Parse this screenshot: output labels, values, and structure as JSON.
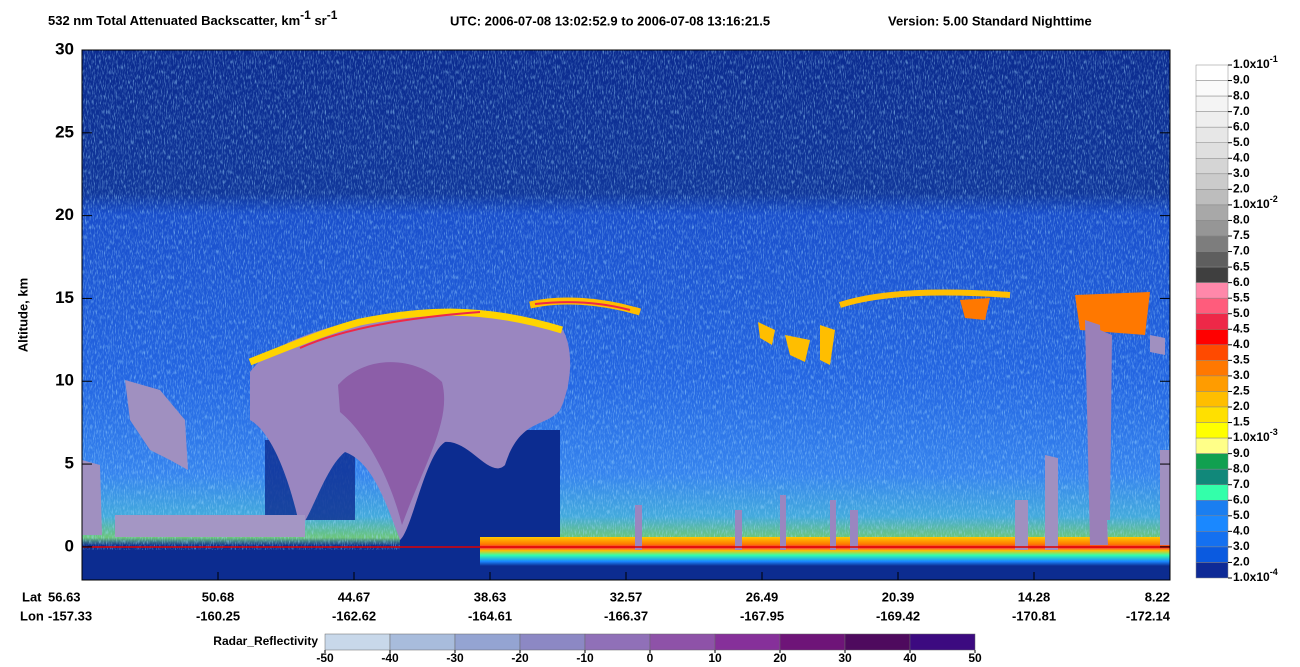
{
  "chart_data": {
    "type": "curtain",
    "title": {
      "text": "532 nm Total Attenuated Backscatter, km",
      "exp1": "-1",
      "unit2": " sr",
      "exp2": "-1"
    },
    "utc": "UTC:  2006-07-08 13:02:52.9  to  2006-07-08 13:16:21.5",
    "version": "Version: 5.00  Standard  Nighttime",
    "ylabel": "Altitude, km",
    "ylim": [
      -2,
      30
    ],
    "yticks": [
      0,
      5,
      10,
      15,
      20,
      25,
      30
    ],
    "lat_label": "Lat",
    "lon_label": "Lon",
    "lat": [
      56.63,
      50.68,
      44.67,
      38.63,
      32.57,
      26.49,
      20.39,
      14.28,
      8.22
    ],
    "lon": [
      -157.33,
      -160.25,
      -162.62,
      -164.61,
      -166.37,
      -167.95,
      -169.42,
      -170.81,
      -172.14
    ],
    "colorbar": {
      "labels": [
        {
          "text": "1.0x10",
          "exp": "-1"
        },
        "9.0",
        "8.0",
        "7.0",
        "6.0",
        "5.0",
        "4.0",
        "3.0",
        "2.0",
        {
          "text": "1.0x10",
          "exp": "-2"
        },
        "8.0",
        "7.5",
        "7.0",
        "6.5",
        "6.0",
        "5.5",
        "5.0",
        "4.5",
        "4.0",
        "3.5",
        "3.0",
        "2.5",
        "2.0",
        "1.5",
        {
          "text": "1.0x10",
          "exp": "-3"
        },
        "9.0",
        "8.0",
        "7.0",
        "6.0",
        "5.0",
        "4.0",
        "3.0",
        "2.0",
        {
          "text": "1.0x10",
          "exp": "-4"
        }
      ],
      "colors": [
        "#ffffff",
        "#fafafa",
        "#f4f4f4",
        "#eeeeee",
        "#e7e7e7",
        "#dfdfdf",
        "#d5d5d5",
        "#cbcbcb",
        "#bdbdbd",
        "#a8a8a8",
        "#969696",
        "#7d7d7d",
        "#5e5e5e",
        "#3f3f3f",
        "#ff88aa",
        "#ff5c7c",
        "#ee2848",
        "#ff0000",
        "#ff4a00",
        "#ff7800",
        "#ff9c00",
        "#ffbe00",
        "#ffe000",
        "#ffff00",
        "#ffff88",
        "#11a050",
        "#11887a",
        "#33ffaa",
        "#1a7ef0",
        "#1a88ff",
        "#1470f0",
        "#0a5ae0",
        "#0e2a96"
      ]
    },
    "radar": {
      "label": "Radar_Reflectivity",
      "xlim": [
        -50,
        50
      ],
      "xticks": [
        -50,
        -40,
        -30,
        -20,
        -10,
        0,
        10,
        20,
        30,
        40,
        50
      ],
      "colors": [
        "#c8d8ea",
        "#a8bcdc",
        "#94a4d2",
        "#8c88c4",
        "#9070b8",
        "#8e52a8",
        "#86309a",
        "#6e1478",
        "#4e0a5e",
        "#3c0a80"
      ]
    }
  }
}
